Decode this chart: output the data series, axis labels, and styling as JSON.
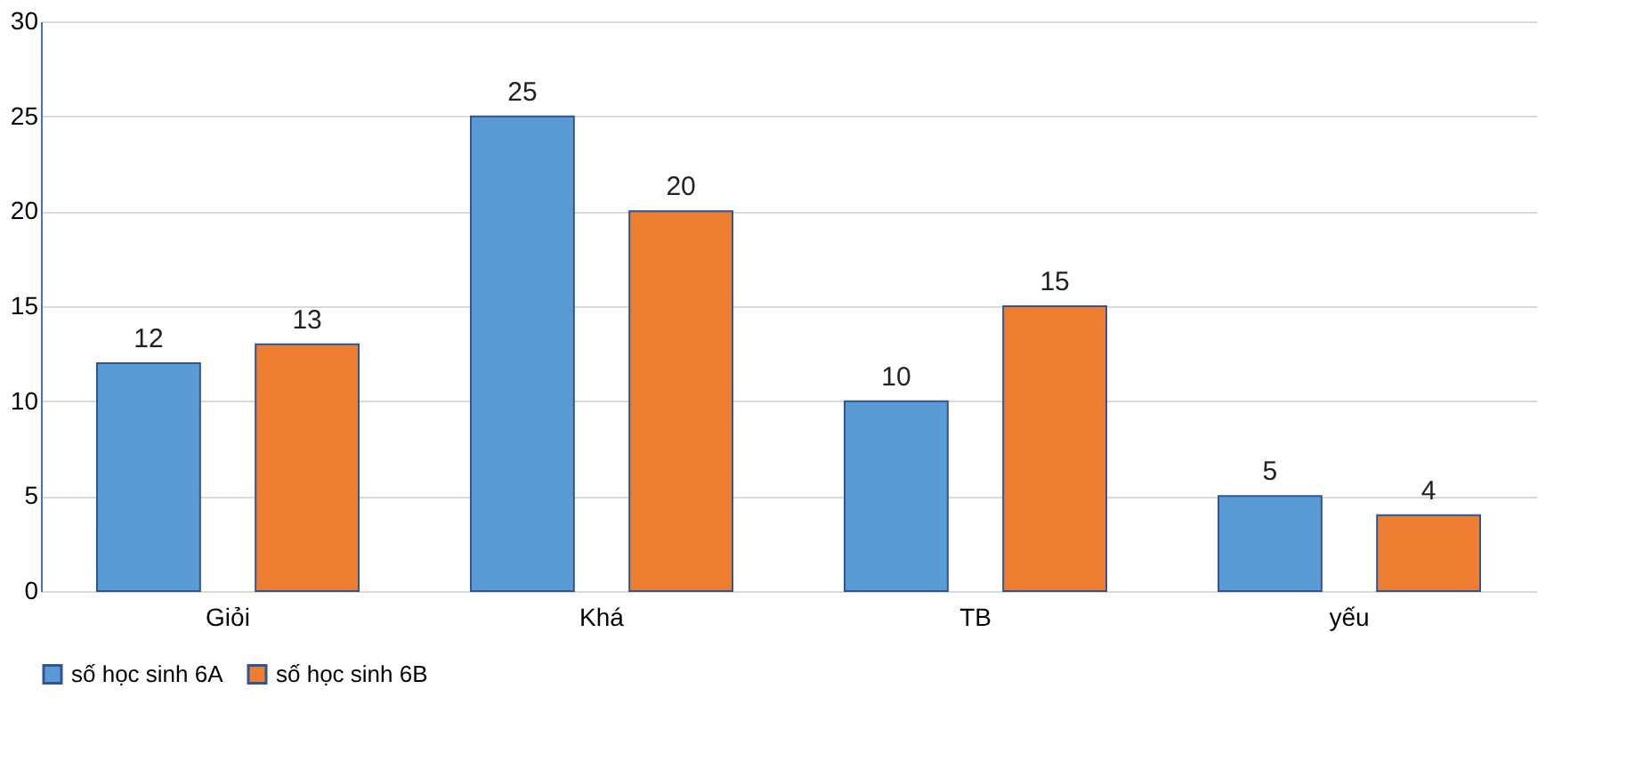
{
  "chart_data": {
    "type": "bar",
    "categories": [
      "Giỏi",
      "Khá",
      "TB",
      "yếu"
    ],
    "series": [
      {
        "name": "số học sinh 6A",
        "color": "#5b9bd5",
        "values": [
          12,
          25,
          10,
          5
        ]
      },
      {
        "name": "số học sinh 6B",
        "color": "#ed7d31",
        "values": [
          13,
          20,
          15,
          4
        ]
      }
    ],
    "ylim": [
      0,
      30
    ],
    "yticks": [
      0,
      5,
      10,
      15,
      20,
      25,
      30
    ],
    "grid": "y",
    "legend": "bottom",
    "data_labels": true
  }
}
